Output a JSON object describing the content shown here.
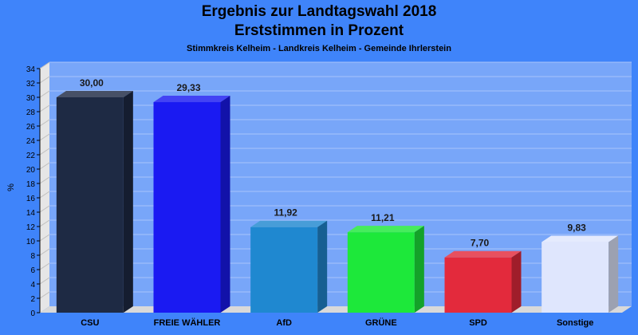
{
  "chart_data": {
    "type": "bar",
    "title": "Ergebnis zur Landtagswahl 2018",
    "subtitle": "Erststimmen in Prozent",
    "subsubtitle": "Stimmkreis Kelheim - Landkreis Kelheim - Gemeinde Ihrlerstein",
    "ylabel": "%",
    "xlabel": "",
    "ylim": [
      0,
      34
    ],
    "yticks": [
      0,
      2,
      4,
      6,
      8,
      10,
      12,
      14,
      16,
      18,
      20,
      22,
      24,
      26,
      28,
      30,
      32,
      34
    ],
    "grid": true,
    "categories": [
      "CSU",
      "FREIE WÄHLER",
      "AfD",
      "GRÜNE",
      "SPD",
      "Sonstige"
    ],
    "values": [
      30.0,
      29.33,
      11.92,
      11.21,
      7.7,
      9.83
    ],
    "value_labels": [
      "30,00",
      "29,33",
      "11,92",
      "11,21",
      "7,70",
      "9,83"
    ],
    "colors": [
      "#1e2a44",
      "#1a1af2",
      "#1f88d0",
      "#1de83a",
      "#e32a3c",
      "#dfe6fd"
    ]
  }
}
